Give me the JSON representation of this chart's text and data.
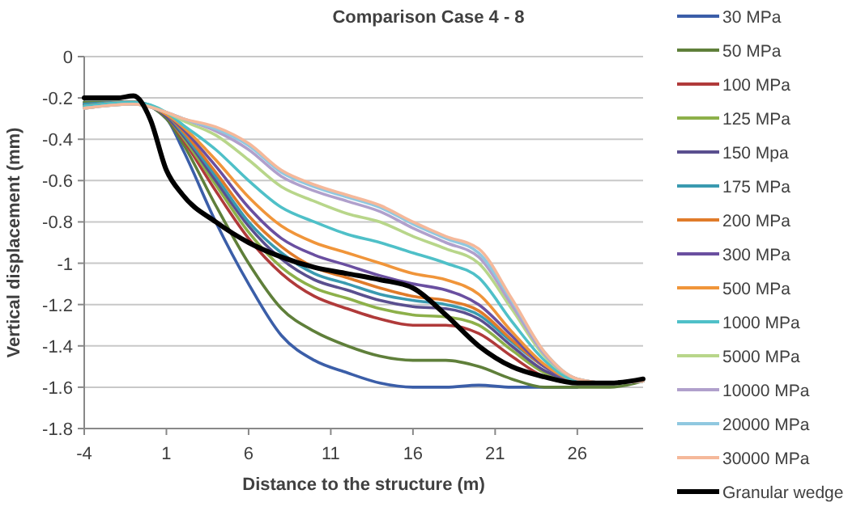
{
  "chart_data": {
    "type": "line",
    "title": "Comparison Case 4 - 8",
    "xlabel": "Distance to the structure (m)",
    "ylabel": "Vertical displacement (mm)",
    "x": [
      -4,
      -1,
      1,
      2,
      4,
      6,
      8,
      10,
      12,
      14,
      16,
      18,
      20,
      22,
      24,
      26,
      28,
      30
    ],
    "xlim": [
      -4,
      30
    ],
    "xticks": [
      -4,
      1,
      6,
      11,
      16,
      21,
      26
    ],
    "ylim": [
      -1.8,
      0
    ],
    "yticks": [
      -1.8,
      -1.6,
      -1.4,
      -1.2,
      -1,
      -0.8,
      -0.6,
      -0.4,
      -0.2,
      0
    ],
    "grid": "y",
    "legend": "right",
    "marker": "none",
    "line_style": "solid",
    "series": [
      {
        "name": "30 MPa",
        "color": "#3b5ea8",
        "values": [
          -0.22,
          -0.22,
          -0.3,
          -0.45,
          -0.8,
          -1.1,
          -1.35,
          -1.47,
          -1.53,
          -1.58,
          -1.6,
          -1.6,
          -1.59,
          -1.6,
          -1.6,
          -1.6,
          null,
          null
        ]
      },
      {
        "name": "50 MPa",
        "color": "#5f7f3a",
        "values": [
          -0.22,
          -0.22,
          -0.3,
          -0.42,
          -0.72,
          -1.0,
          -1.22,
          -1.33,
          -1.4,
          -1.45,
          -1.47,
          -1.47,
          -1.5,
          -1.56,
          -1.6,
          -1.6,
          -1.6,
          -1.57
        ]
      },
      {
        "name": "100 MPa",
        "color": "#b03a3a",
        "values": [
          -0.23,
          -0.22,
          -0.29,
          -0.4,
          -0.65,
          -0.88,
          -1.05,
          -1.16,
          -1.22,
          -1.27,
          -1.3,
          -1.3,
          -1.34,
          -1.45,
          -1.55,
          -1.58,
          -1.58,
          -1.57
        ]
      },
      {
        "name": "125 MPa",
        "color": "#8db04a",
        "values": [
          -0.23,
          -0.22,
          -0.29,
          -0.39,
          -0.62,
          -0.85,
          -1.02,
          -1.12,
          -1.17,
          -1.22,
          -1.25,
          -1.26,
          -1.3,
          -1.42,
          -1.53,
          -1.58,
          -1.58,
          -1.57
        ]
      },
      {
        "name": "150 Mpa",
        "color": "#5a4f8f",
        "values": [
          -0.23,
          -0.22,
          -0.29,
          -0.38,
          -0.6,
          -0.82,
          -0.98,
          -1.08,
          -1.13,
          -1.18,
          -1.21,
          -1.22,
          -1.27,
          -1.4,
          -1.52,
          -1.57,
          -1.58,
          -1.57
        ]
      },
      {
        "name": "175 MPa",
        "color": "#3a9ab0",
        "values": [
          -0.23,
          -0.22,
          -0.28,
          -0.37,
          -0.58,
          -0.8,
          -0.95,
          -1.05,
          -1.1,
          -1.15,
          -1.18,
          -1.2,
          -1.25,
          -1.38,
          -1.5,
          -1.57,
          -1.58,
          -1.57
        ]
      },
      {
        "name": "200 MPa",
        "color": "#e07b2a",
        "values": [
          -0.24,
          -0.22,
          -0.28,
          -0.36,
          -0.56,
          -0.77,
          -0.92,
          -1.02,
          -1.07,
          -1.12,
          -1.16,
          -1.18,
          -1.23,
          -1.37,
          -1.5,
          -1.57,
          -1.58,
          -1.57
        ]
      },
      {
        "name": "300 MPa",
        "color": "#6a4fa0",
        "values": [
          -0.24,
          -0.22,
          -0.28,
          -0.35,
          -0.53,
          -0.73,
          -0.88,
          -0.96,
          -1.01,
          -1.06,
          -1.1,
          -1.13,
          -1.2,
          -1.35,
          -1.5,
          -1.57,
          -1.58,
          -1.57
        ]
      },
      {
        "name": "500 MPa",
        "color": "#f0953a",
        "values": [
          -0.24,
          -0.22,
          -0.28,
          -0.34,
          -0.5,
          -0.68,
          -0.82,
          -0.9,
          -0.95,
          -1.0,
          -1.05,
          -1.08,
          -1.15,
          -1.33,
          -1.49,
          -1.57,
          -1.58,
          -1.57
        ]
      },
      {
        "name": "1000 MPa",
        "color": "#4fc0c8",
        "values": [
          -0.24,
          -0.22,
          -0.27,
          -0.33,
          -0.45,
          -0.6,
          -0.73,
          -0.8,
          -0.86,
          -0.9,
          -0.95,
          -1.0,
          -1.07,
          -1.28,
          -1.47,
          -1.57,
          -1.58,
          -1.57
        ]
      },
      {
        "name": "5000 MPa",
        "color": "#b8d68a",
        "values": [
          -0.25,
          -0.23,
          -0.27,
          -0.31,
          -0.38,
          -0.5,
          -0.63,
          -0.7,
          -0.76,
          -0.8,
          -0.87,
          -0.93,
          -1.0,
          -1.22,
          -1.45,
          -1.56,
          -1.58,
          -1.57
        ]
      },
      {
        "name": "10000 MPa",
        "color": "#b0a0cc",
        "values": [
          -0.25,
          -0.23,
          -0.27,
          -0.3,
          -0.36,
          -0.45,
          -0.58,
          -0.65,
          -0.7,
          -0.75,
          -0.83,
          -0.9,
          -0.97,
          -1.2,
          -1.44,
          -1.56,
          -1.58,
          -1.57
        ]
      },
      {
        "name": "20000 MPa",
        "color": "#90c8e0",
        "values": [
          -0.25,
          -0.23,
          -0.27,
          -0.3,
          -0.35,
          -0.43,
          -0.56,
          -0.63,
          -0.68,
          -0.73,
          -0.81,
          -0.88,
          -0.95,
          -1.18,
          -1.43,
          -1.56,
          -1.58,
          -1.57
        ]
      },
      {
        "name": "30000 MPa",
        "color": "#f5b89a",
        "values": [
          -0.25,
          -0.23,
          -0.27,
          -0.3,
          -0.34,
          -0.42,
          -0.55,
          -0.62,
          -0.67,
          -0.72,
          -0.8,
          -0.87,
          -0.93,
          -1.17,
          -1.43,
          -1.56,
          -1.58,
          -1.57
        ]
      },
      {
        "name": "Granular wedge",
        "color": "#000000",
        "x": [
          -4,
          -2,
          -1,
          0,
          1,
          2,
          4,
          6,
          8,
          10,
          12,
          14,
          16,
          18,
          20,
          22,
          24,
          26,
          28,
          30
        ],
        "values": [
          -0.2,
          -0.2,
          -0.19,
          -0.3,
          -0.55,
          -0.67,
          -0.8,
          -0.9,
          -0.97,
          -1.02,
          -1.05,
          -1.08,
          -1.12,
          -1.25,
          -1.4,
          -1.5,
          -1.55,
          -1.58,
          -1.58,
          -1.56
        ]
      }
    ]
  }
}
